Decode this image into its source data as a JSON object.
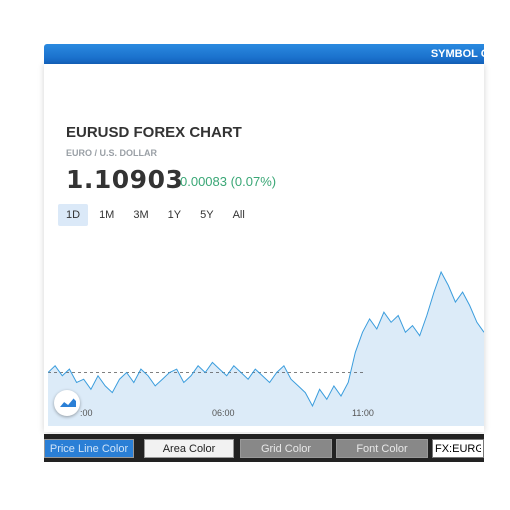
{
  "header": {
    "banner": "SYMBOL OVE"
  },
  "widget": {
    "title": "EURUSD FOREX CHART",
    "subtitle": "EURO / U.S. DOLLAR",
    "price": "1.10903",
    "change": "0.00083 (0.07%)",
    "ranges": [
      "1D",
      "1M",
      "3M",
      "1Y",
      "5Y",
      "All"
    ],
    "active_range": "1D",
    "x_ticks": [
      ":00",
      "06:00",
      "11:00"
    ]
  },
  "controls": {
    "price_line_color": "Price Line Color",
    "area_color": "Area Color",
    "grid_color": "Grid Color",
    "font_color": "Font Color",
    "symbol_value": "FX:EURGE"
  },
  "colors": {
    "accent": "#2a7fd6",
    "positive": "#3aa776",
    "area_fill": "#dcebf8",
    "line": "#3b9ddd"
  },
  "chart_data": {
    "type": "area",
    "series": [
      {
        "values": [
          1.1082,
          1.1084,
          1.1081,
          1.1083,
          1.1079,
          1.108,
          1.1077,
          1.1081,
          1.1078,
          1.1076,
          1.108,
          1.1082,
          1.1079,
          1.1083,
          1.1081,
          1.1078,
          1.108,
          1.1082,
          1.1083,
          1.1079,
          1.1081,
          1.1084,
          1.1082,
          1.1085,
          1.1083,
          1.1081,
          1.1084,
          1.1082,
          1.108,
          1.1083,
          1.1081,
          1.1079,
          1.1082,
          1.1084,
          1.108,
          1.1078,
          1.1076,
          1.1072,
          1.1077,
          1.1074,
          1.1078,
          1.1075,
          1.1079,
          1.1088,
          1.1094,
          1.1098,
          1.1095,
          1.11,
          1.1097,
          1.1099,
          1.1094,
          1.1096,
          1.1093,
          1.1099,
          1.1106,
          1.1112,
          1.1108,
          1.1103,
          1.1106,
          1.1102,
          1.1097,
          1.1094
        ]
      }
    ],
    "baseline": 1.1082,
    "grid": false
  }
}
